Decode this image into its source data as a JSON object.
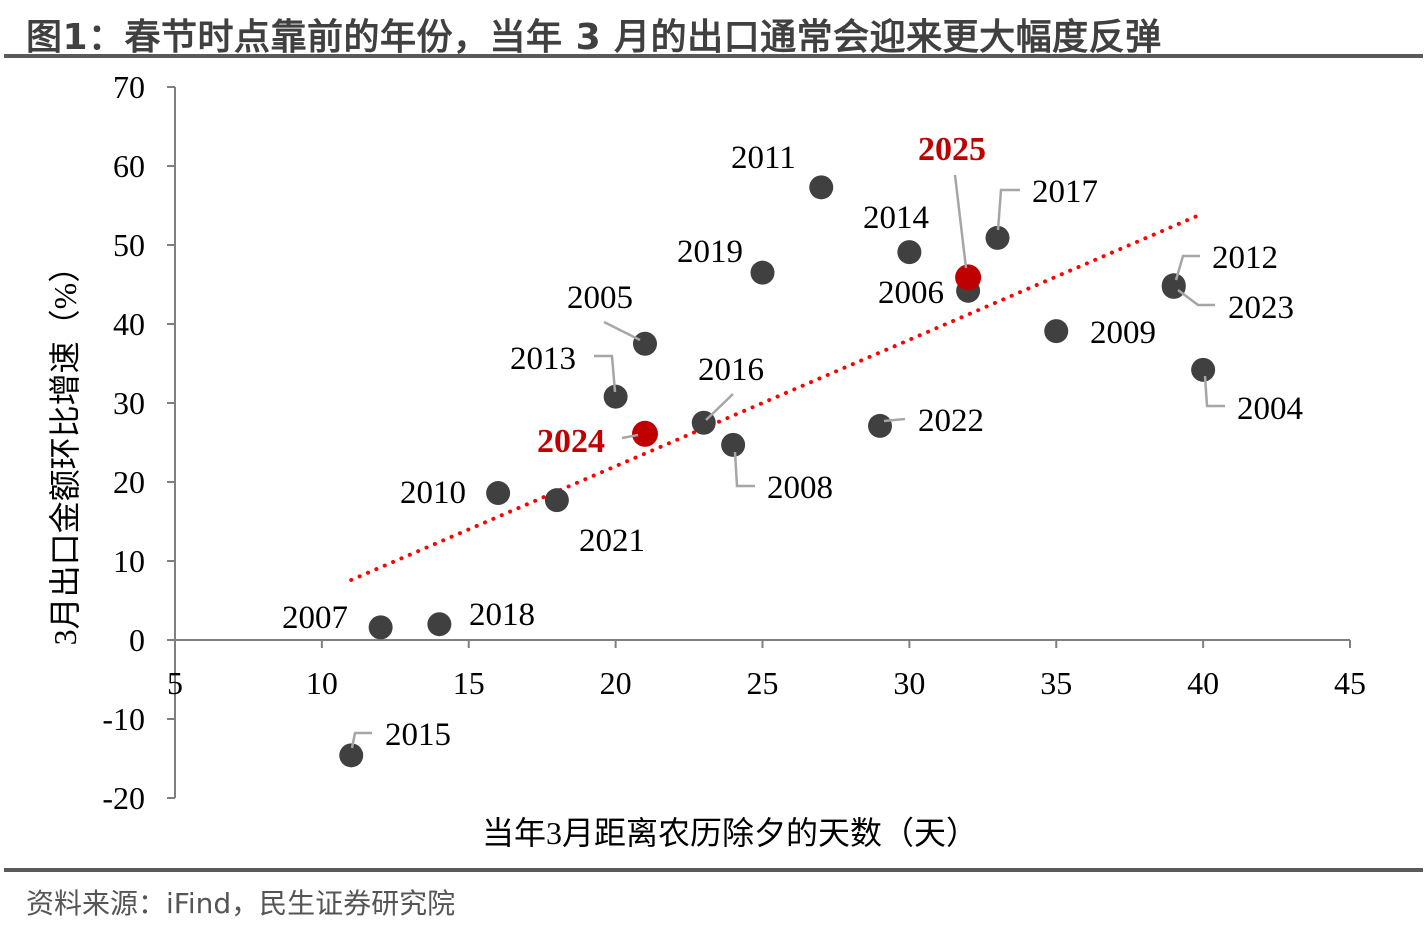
{
  "title": "图1：春节时点靠前的年份，当年 3 月的出口通常会迎来更大幅度反弹",
  "footer": "资料来源：iFind，民生证券研究院",
  "colors": {
    "point": "#404040",
    "highlight": "#c00000",
    "trend": "#ff0000",
    "axis": "#7f7f7f"
  },
  "chart_data": {
    "type": "scatter",
    "title": "春节时点靠前的年份，当年 3 月的出口通常会迎来更大幅度反弹",
    "xlabel": "当年3月距离农历除夕的天数（天）",
    "ylabel": "3月出口金额环比增速（%）",
    "xlim": [
      5,
      45
    ],
    "ylim": [
      -20,
      70
    ],
    "xticks": [
      "5",
      "10",
      "15",
      "20",
      "25",
      "30",
      "35",
      "40",
      "45"
    ],
    "yticks": [
      "70",
      "60",
      "50",
      "40",
      "30",
      "20",
      "10",
      "0",
      "-10",
      "-20"
    ],
    "grid": false,
    "points": [
      {
        "label": "2011",
        "x": 27,
        "y": 57.3,
        "highlight": false
      },
      {
        "label": "2025",
        "x": 32,
        "y": 45.9,
        "highlight": true
      },
      {
        "label": "2006",
        "x": 32,
        "y": 44.2,
        "highlight": false
      },
      {
        "label": "2017",
        "x": 33,
        "y": 50.9,
        "highlight": false
      },
      {
        "label": "2014",
        "x": 30,
        "y": 49.1,
        "highlight": false
      },
      {
        "label": "2019",
        "x": 25,
        "y": 46.5,
        "highlight": false
      },
      {
        "label": "2012",
        "x": 39,
        "y": 44.9,
        "highlight": false
      },
      {
        "label": "2023",
        "x": 39,
        "y": 44.7,
        "highlight": false
      },
      {
        "label": "2009",
        "x": 35,
        "y": 39.1,
        "highlight": false
      },
      {
        "label": "2004",
        "x": 40,
        "y": 34.2,
        "highlight": false
      },
      {
        "label": "2005",
        "x": 21,
        "y": 37.5,
        "highlight": false
      },
      {
        "label": "2013",
        "x": 20,
        "y": 30.8,
        "highlight": false
      },
      {
        "label": "2016",
        "x": 23,
        "y": 27.5,
        "highlight": false
      },
      {
        "label": "2024",
        "x": 21,
        "y": 26.1,
        "highlight": true
      },
      {
        "label": "2008",
        "x": 24,
        "y": 24.7,
        "highlight": false
      },
      {
        "label": "2022",
        "x": 29,
        "y": 27.1,
        "highlight": false
      },
      {
        "label": "2010",
        "x": 16,
        "y": 18.6,
        "highlight": false
      },
      {
        "label": "2021",
        "x": 18,
        "y": 17.7,
        "highlight": false
      },
      {
        "label": "2007",
        "x": 12,
        "y": 1.6,
        "highlight": false
      },
      {
        "label": "2018",
        "x": 14,
        "y": 2.0,
        "highlight": false
      },
      {
        "label": "2015",
        "x": 11,
        "y": -14.6,
        "highlight": false
      }
    ],
    "trendline": {
      "type": "linear",
      "style": "dotted",
      "x": [
        11,
        40
      ],
      "y": [
        7.6,
        54.0
      ]
    }
  }
}
